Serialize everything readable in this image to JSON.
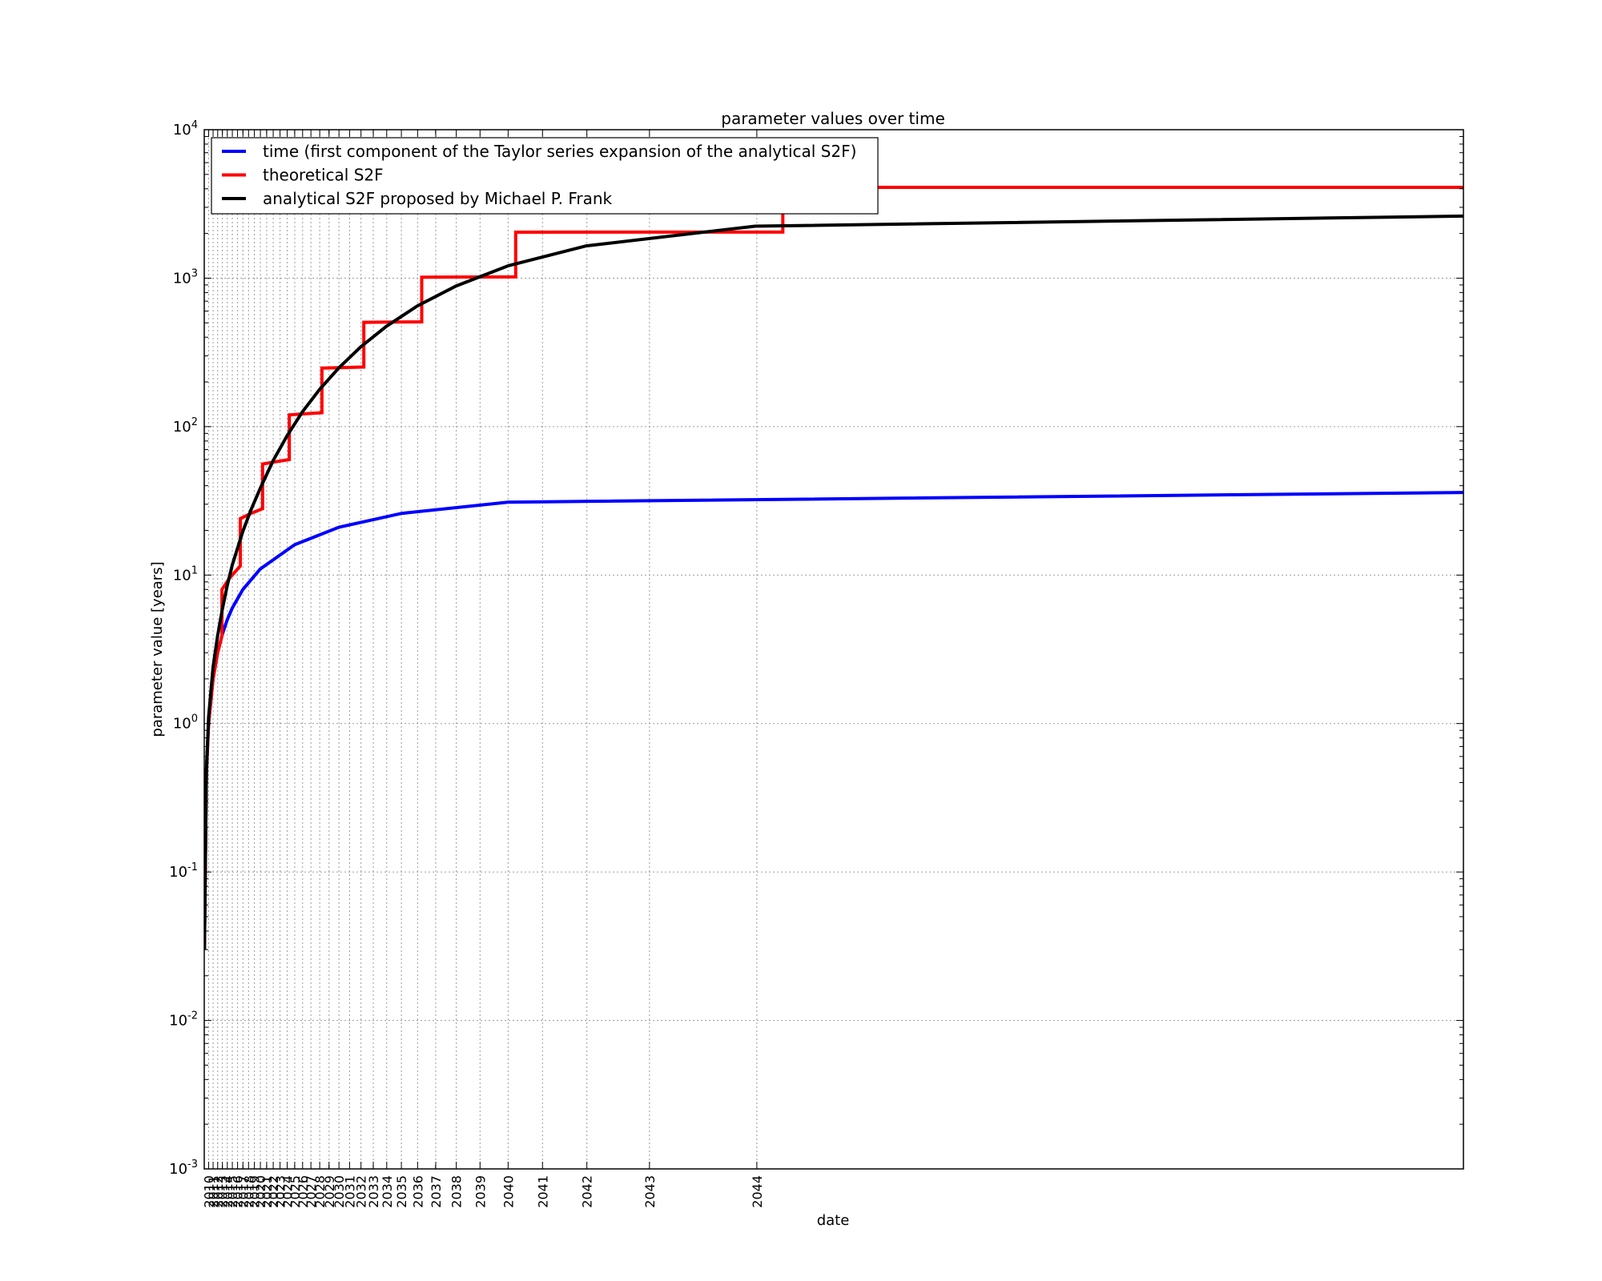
{
  "chart_data": {
    "type": "line",
    "title": "parameter values over time",
    "xlabel": "date",
    "ylabel": "parameter value [years]",
    "xscale": "log (years before 2045)",
    "yscale": "log",
    "ylim": [
      0.001,
      10000
    ],
    "xlim": [
      "2009-01-13",
      "2044-12-31"
    ],
    "grid": true,
    "legend_position": "upper left",
    "yticks": [
      {
        "base": "10",
        "exp": "-3",
        "value": 0.001
      },
      {
        "base": "10",
        "exp": "-2",
        "value": 0.01
      },
      {
        "base": "10",
        "exp": "-1",
        "value": 0.1
      },
      {
        "base": "10",
        "exp": "0",
        "value": 1
      },
      {
        "base": "10",
        "exp": "1",
        "value": 10
      },
      {
        "base": "10",
        "exp": "2",
        "value": 100
      },
      {
        "base": "10",
        "exp": "3",
        "value": 1000
      },
      {
        "base": "10",
        "exp": "4",
        "value": 10000
      }
    ],
    "xticks": [
      "2010",
      "2011",
      "2012",
      "2013",
      "2014",
      "2015",
      "2016",
      "2017",
      "2018",
      "2019",
      "2020",
      "2021",
      "2022",
      "2023",
      "2024",
      "2025",
      "2026",
      "2027",
      "2028",
      "2029",
      "2030",
      "2031",
      "2032",
      "2033",
      "2034",
      "2035",
      "2036",
      "2037",
      "2038",
      "2039",
      "2040",
      "2041",
      "2042",
      "2043",
      "2044"
    ],
    "series": [
      {
        "name": "time (first component of the Taylor series expansion of the analytical S2F)",
        "color": "#0000ff",
        "x": [
          "2009-01-13",
          "2009-07-01",
          "2010-01-03",
          "2011-01-01",
          "2012-01-01",
          "2013-01-01",
          "2014-01-01",
          "2015-01-01",
          "2017-01-01",
          "2020-01-01",
          "2025-01-01",
          "2030-01-01",
          "2035-01-01",
          "2040-01-01",
          "2044-12-31"
        ],
        "y": [
          0.03,
          0.47,
          1,
          2,
          3,
          4,
          5,
          6,
          8,
          11,
          16,
          21,
          26,
          31,
          36
        ]
      },
      {
        "name": "theoretical S2F",
        "color": "#ff0000",
        "x": [
          "2009-01-13",
          "2009-07-01",
          "2010-01-03",
          "2011-01-01",
          "2012-01-01",
          "2012-11-28",
          "2012-11-28",
          "2014-06-01",
          "2016-07-09",
          "2016-07-09",
          "2018-06-01",
          "2020-05-11",
          "2020-05-11",
          "2022-06-01",
          "2024-04-20",
          "2024-04-20",
          "2026-06-01",
          "2028-04-01",
          "2028-04-01",
          "2030-06-01",
          "2032-04-01",
          "2032-04-01",
          "2034-06-01",
          "2036-04-01",
          "2036-04-01",
          "2038-06-01",
          "2040-04-01",
          "2040-04-01",
          "2042-06-01",
          "2044-03-01",
          "2044-03-01",
          "2044-12-31"
        ],
        "y": [
          0.03,
          0.47,
          1,
          2,
          3,
          3.9,
          8,
          9.5,
          11.5,
          24,
          26,
          28,
          56,
          58,
          60,
          120,
          122,
          124,
          248,
          250,
          252,
          504,
          506,
          508,
          1016,
          1018,
          1020,
          2040,
          2042,
          2044,
          4088,
          4090
        ]
      },
      {
        "name": "analytical S2F proposed by Michael P. Frank",
        "color": "#000000",
        "x": [
          "2009-01-13",
          "2009-07-01",
          "2010-01-03",
          "2011-01-01",
          "2012-01-01",
          "2013-01-01",
          "2014-01-01",
          "2015-01-01",
          "2017-01-01",
          "2018-06-01",
          "2020-01-01",
          "2022-01-01",
          "2024-01-01",
          "2026-01-01",
          "2028-01-01",
          "2030-01-01",
          "2032-01-01",
          "2034-01-01",
          "2036-01-01",
          "2038-01-01",
          "2040-01-01",
          "2042-01-01",
          "2044-01-01",
          "2044-12-31"
        ],
        "y": [
          0.03,
          0.48,
          1.1,
          2.4,
          3.9,
          5.9,
          8.5,
          11.7,
          19.7,
          27.4,
          38.5,
          59,
          87,
          126,
          178,
          249,
          345,
          475,
          650,
          886,
          1210,
          1650,
          2240,
          2620
        ]
      }
    ]
  }
}
